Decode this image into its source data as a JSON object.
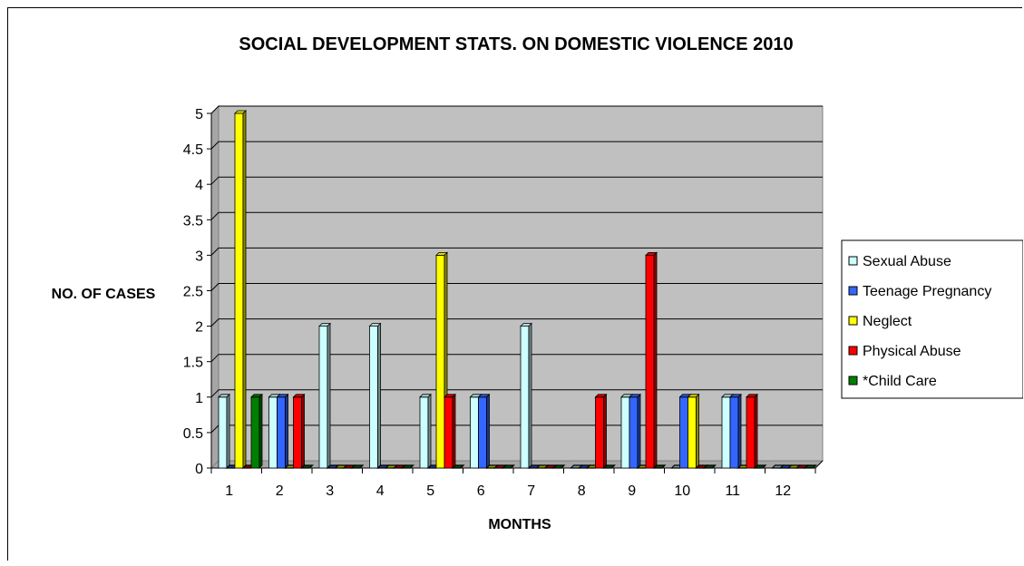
{
  "chart_data": {
    "type": "bar",
    "title": "SOCIAL DEVELOPMENT STATS. ON DOMESTIC VIOLENCE 2010",
    "xlabel": "MONTHS",
    "ylabel": "NO. OF CASES",
    "categories": [
      "1",
      "2",
      "3",
      "4",
      "5",
      "6",
      "7",
      "8",
      "9",
      "10",
      "11",
      "12"
    ],
    "yticks": [
      "0",
      "0.5",
      "1",
      "1.5",
      "2",
      "2.5",
      "3",
      "3.5",
      "4",
      "4.5",
      "5"
    ],
    "ylim": [
      0,
      5
    ],
    "grid": true,
    "legend_position": "right",
    "plot_background": "#c0c0c0",
    "series": [
      {
        "name": "Sexual Abuse",
        "color": "#ccffff",
        "values": [
          1,
          1,
          2,
          2,
          1,
          1,
          2,
          0,
          1,
          0,
          1,
          0
        ]
      },
      {
        "name": "Teenage Pregnancy",
        "color": "#3366ff",
        "values": [
          0,
          1,
          0,
          0,
          0,
          1,
          0,
          0,
          1,
          1,
          1,
          0
        ]
      },
      {
        "name": "Neglect",
        "color": "#ffff00",
        "values": [
          5,
          0,
          0,
          0,
          3,
          0,
          0,
          0,
          0,
          1,
          0,
          0
        ]
      },
      {
        "name": "Physical Abuse",
        "color": "#ff0000",
        "values": [
          0,
          1,
          0,
          0,
          1,
          0,
          0,
          1,
          3,
          0,
          1,
          0
        ]
      },
      {
        "name": "*Child Care",
        "color": "#008000",
        "values": [
          1,
          0,
          0,
          0,
          0,
          0,
          0,
          0,
          0,
          0,
          0,
          0
        ]
      }
    ]
  }
}
